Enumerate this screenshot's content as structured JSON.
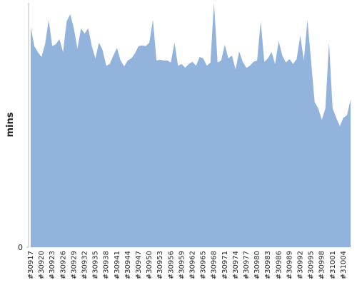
{
  "chart_data": {
    "type": "area",
    "y_label": "mins",
    "color": "#92b4dc",
    "categories": [
      "#30917",
      null,
      null,
      "#30920",
      null,
      null,
      "#30923",
      null,
      null,
      "#30926",
      null,
      null,
      "#30929",
      null,
      null,
      "#30932",
      null,
      null,
      "#30935",
      null,
      null,
      "#30938",
      null,
      null,
      "#30941",
      null,
      null,
      "#30944",
      null,
      null,
      "#30947",
      null,
      null,
      "#30950",
      null,
      null,
      "#30953",
      null,
      null,
      "#30956",
      null,
      null,
      "#30959",
      null,
      null,
      "#30962",
      null,
      null,
      "#30965",
      null,
      null,
      "#30968",
      null,
      null,
      "#30971",
      null,
      null,
      "#30974",
      null,
      null,
      "#30977",
      null,
      null,
      "#30980",
      null,
      null,
      "#30983",
      null,
      null,
      "#30986",
      null,
      null,
      "#30989",
      null,
      null,
      "#30992",
      null,
      null,
      "#30995",
      null,
      null,
      "#30998",
      null,
      null,
      "#31001",
      null,
      null,
      "#31004",
      null,
      null
    ],
    "values": [
      63.1,
      57.6,
      55.9,
      54.5,
      58.2,
      65.1,
      57.6,
      58.2,
      59.6,
      55.9,
      64.7,
      66.7,
      62.7,
      56.9,
      62.7,
      61.2,
      62.7,
      57.6,
      54.1,
      58.6,
      56.5,
      52.0,
      52.5,
      54.9,
      57.1,
      53.5,
      51.8,
      53.5,
      54.1,
      55.5,
      57.6,
      57.8,
      57.6,
      58.6,
      65.1,
      53.5,
      53.7,
      53.5,
      53.5,
      52.9,
      58.6,
      52.0,
      52.5,
      51.4,
      52.5,
      53.1,
      52.0,
      54.5,
      54.1,
      52.0,
      52.9,
      70,
      52.9,
      53.5,
      58.0,
      54.1,
      54.9,
      51.0,
      56.1,
      53.1,
      51.4,
      52.0,
      53.1,
      53.5,
      64.7,
      53.1,
      54.1,
      55.9,
      52.5,
      59.0,
      54.9,
      52.9,
      53.9,
      52.5,
      53.9,
      60.6,
      53.5,
      65.1,
      53.5,
      41.6,
      39.8,
      36.5,
      39.8,
      58.6,
      39.8,
      37.1,
      34.7,
      37.1,
      37.8,
      42.2
    ],
    "ylim": [
      0,
      70
    ],
    "yticks": [
      0
    ]
  }
}
